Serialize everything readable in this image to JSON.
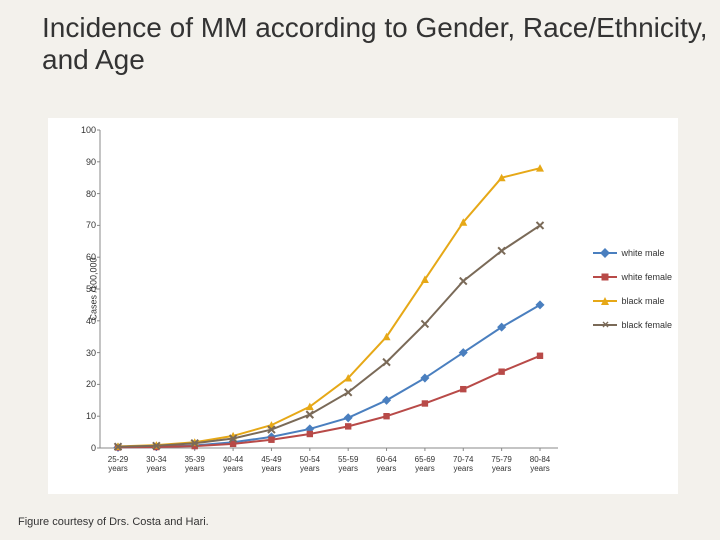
{
  "title": "Incidence of MM according to Gender, Race/Ethnicity, and Age",
  "footer": "Figure courtesy of Drs. Costa and Hari.",
  "chart": {
    "type": "line",
    "background_color": "#ffffff",
    "page_background_color": "#f3f1ec",
    "y_axis": {
      "label": "Cases /100,000",
      "min": 0,
      "max": 100,
      "step": 10
    },
    "x_categories": [
      "25-29 years",
      "30-34 years",
      "35-39 years",
      "40-44 years",
      "45-49 years",
      "50-54 years",
      "55-59 years",
      "60-64 years",
      "65-69 years",
      "70-74 years",
      "75-79 years",
      "80-84 years"
    ],
    "series": [
      {
        "name": "white male",
        "color": "#4a7fbf",
        "marker": "diamond",
        "values": [
          0.2,
          0.4,
          0.8,
          1.8,
          3.5,
          6.0,
          9.5,
          15.0,
          22.0,
          30.0,
          38.0,
          45.0
        ]
      },
      {
        "name": "white female",
        "color": "#b84a48",
        "marker": "square",
        "values": [
          0.2,
          0.3,
          0.6,
          1.3,
          2.6,
          4.4,
          6.8,
          10.0,
          14.0,
          18.5,
          24.0,
          29.0
        ]
      },
      {
        "name": "black male",
        "color": "#e6a817",
        "marker": "triangle",
        "values": [
          0.5,
          0.9,
          1.8,
          3.8,
          7.2,
          13.0,
          22.0,
          35.0,
          53.0,
          71.0,
          85.0,
          88.0
        ]
      },
      {
        "name": "black female",
        "color": "#7a6a58",
        "marker": "x",
        "values": [
          0.4,
          0.7,
          1.5,
          3.0,
          5.8,
          10.5,
          17.5,
          27.0,
          39.0,
          52.5,
          62.0,
          70.0
        ]
      }
    ],
    "line_width": 2,
    "axis_line_color": "#888888",
    "tick_font_size": 9,
    "title_font_size": 28
  }
}
